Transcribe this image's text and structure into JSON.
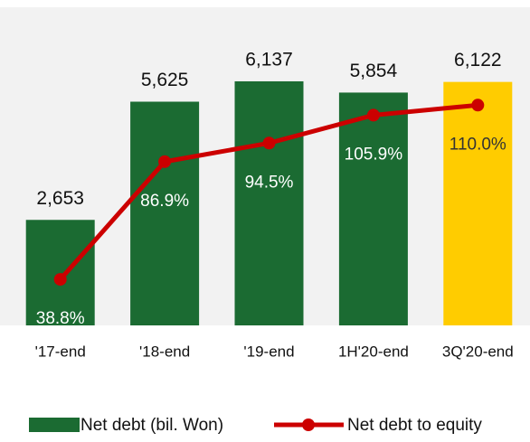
{
  "chart_data": {
    "type": "bar-line",
    "categories": [
      "'17-end",
      "'18-end",
      "'19-end",
      "1H'20-end",
      "3Q'20-end"
    ],
    "series": [
      {
        "name": "Net debt (bil. Won)",
        "type": "bar",
        "color": "#1b6b32",
        "colors": [
          "#1b6b32",
          "#1b6b32",
          "#1b6b32",
          "#1b6b32",
          "#ffcc00"
        ],
        "values": [
          2653,
          5625,
          6137,
          5854,
          6122
        ],
        "value_labels": [
          "2,653",
          "5,625",
          "6,137",
          "5,854",
          "6,122"
        ]
      },
      {
        "name": "Net debt to equity",
        "type": "line",
        "axis": "y2",
        "color": "#cc0000",
        "values": [
          38.8,
          86.9,
          94.5,
          105.9,
          110.0
        ],
        "value_labels": [
          "38.8%",
          "86.9%",
          "94.5%",
          "105.9%",
          "110.0%"
        ]
      }
    ],
    "ylim": [
      0,
      8000
    ],
    "y2lim": [
      20,
      150
    ],
    "legend": "bottom"
  }
}
